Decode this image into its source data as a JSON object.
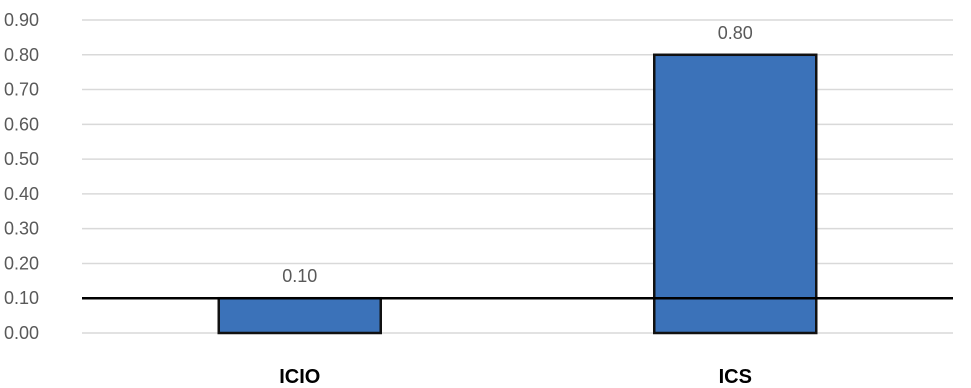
{
  "chart_data": {
    "type": "bar",
    "categories": [
      "ICIO",
      "ICS"
    ],
    "values": [
      0.1,
      0.8
    ],
    "value_labels": [
      "0.10",
      "0.80"
    ],
    "ylim": [
      0,
      0.9
    ],
    "ytick_values": [
      0,
      0.1,
      0.2,
      0.3,
      0.4,
      0.5,
      0.6,
      0.7,
      0.8,
      0.9
    ],
    "ytick_labels": [
      "0.00",
      "0.10",
      "0.20",
      "0.30",
      "0.40",
      "0.50",
      "0.60",
      "0.70",
      "0.80",
      "0.90"
    ],
    "reference_line": 0.1,
    "grid": true,
    "legend": "none",
    "title": "",
    "xlabel": "",
    "ylabel": "",
    "colors": {
      "bar_fill": "#3b72b9",
      "bar_stroke": "#111111",
      "reference_line": "#000000",
      "grid": "#d9d9d9"
    }
  }
}
